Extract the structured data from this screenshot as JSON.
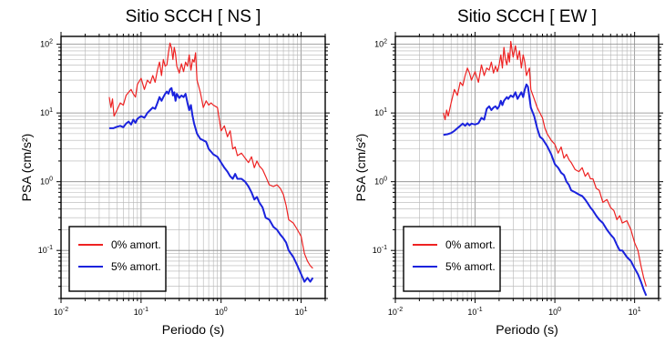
{
  "chart_data": [
    {
      "type": "line",
      "title": "Sitio SCCH [ NS ]",
      "xlabel": "Periodo (s)",
      "ylabel": "PSA (cm/s²)",
      "xscale": "log",
      "yscale": "log",
      "xlim": [
        0.01,
        20
      ],
      "ylim": [
        0.02,
        130
      ],
      "x_ticks": [
        {
          "value": 0.01,
          "base": "10",
          "exp": "-2"
        },
        {
          "value": 0.1,
          "base": "10",
          "exp": "-1"
        },
        {
          "value": 1,
          "base": "10",
          "exp": "0"
        },
        {
          "value": 10,
          "base": "10",
          "exp": "1"
        }
      ],
      "y_ticks": [
        {
          "value": 0.1,
          "base": "10",
          "exp": "-1"
        },
        {
          "value": 1,
          "base": "10",
          "exp": "0"
        },
        {
          "value": 10,
          "base": "10",
          "exp": "1"
        },
        {
          "value": 100,
          "base": "10",
          "exp": "2"
        }
      ],
      "grid": true,
      "legend_position": "bottom-left",
      "series": [
        {
          "name": "0% amort.",
          "color": "#ee2222",
          "x": [
            0.04,
            0.042,
            0.044,
            0.046,
            0.05,
            0.055,
            0.06,
            0.065,
            0.07,
            0.075,
            0.08,
            0.085,
            0.09,
            0.1,
            0.11,
            0.12,
            0.13,
            0.14,
            0.15,
            0.16,
            0.17,
            0.18,
            0.19,
            0.2,
            0.21,
            0.22,
            0.23,
            0.24,
            0.25,
            0.26,
            0.27,
            0.28,
            0.3,
            0.32,
            0.34,
            0.36,
            0.38,
            0.4,
            0.42,
            0.44,
            0.46,
            0.48,
            0.5,
            0.55,
            0.6,
            0.65,
            0.7,
            0.75,
            0.8,
            0.9,
            1.0,
            1.1,
            1.2,
            1.3,
            1.4,
            1.5,
            1.6,
            1.8,
            2.0,
            2.2,
            2.4,
            2.6,
            2.8,
            3.0,
            3.3,
            3.6,
            4.0,
            4.5,
            5.0,
            5.5,
            6.0,
            6.5,
            7.0,
            8.0,
            9.0,
            10,
            11,
            12,
            13,
            14
          ],
          "y": [
            17,
            12,
            16,
            9,
            11,
            14,
            13,
            18,
            20,
            22,
            19,
            17,
            26,
            32,
            22,
            30,
            27,
            35,
            28,
            42,
            55,
            35,
            60,
            48,
            50,
            75,
            104,
            88,
            60,
            90,
            72,
            48,
            38,
            52,
            40,
            55,
            48,
            70,
            42,
            60,
            55,
            75,
            30,
            20,
            12,
            15,
            13,
            14,
            13,
            12,
            5.5,
            6.5,
            4.5,
            5.5,
            3.0,
            3.2,
            2.4,
            2.6,
            2.2,
            1.9,
            2.3,
            1.6,
            2.0,
            1.7,
            1.5,
            1.2,
            0.9,
            0.85,
            0.9,
            0.8,
            0.65,
            0.45,
            0.28,
            0.25,
            0.2,
            0.16,
            0.09,
            0.07,
            0.06,
            0.055
          ]
        },
        {
          "name": "5% amort.",
          "color": "#1a22dd",
          "x": [
            0.04,
            0.045,
            0.05,
            0.055,
            0.06,
            0.065,
            0.07,
            0.075,
            0.08,
            0.085,
            0.09,
            0.1,
            0.11,
            0.12,
            0.13,
            0.14,
            0.15,
            0.16,
            0.17,
            0.18,
            0.19,
            0.2,
            0.21,
            0.22,
            0.23,
            0.24,
            0.25,
            0.26,
            0.27,
            0.28,
            0.3,
            0.32,
            0.34,
            0.36,
            0.38,
            0.4,
            0.42,
            0.44,
            0.46,
            0.5,
            0.55,
            0.6,
            0.65,
            0.7,
            0.8,
            0.9,
            1.0,
            1.1,
            1.2,
            1.3,
            1.4,
            1.5,
            1.6,
            1.8,
            2.0,
            2.2,
            2.4,
            2.6,
            2.8,
            3.0,
            3.3,
            3.6,
            4.0,
            4.5,
            5.0,
            5.5,
            6.0,
            6.5,
            7.0,
            8.0,
            9.0,
            10,
            11,
            12,
            13,
            14
          ],
          "y": [
            6,
            6,
            6.3,
            6.5,
            6.2,
            7,
            7.5,
            6.8,
            8,
            7.2,
            8.2,
            9,
            8.5,
            10,
            11,
            12,
            11.5,
            14,
            17,
            15,
            17,
            19,
            20.5,
            19,
            22,
            23,
            18,
            20,
            15,
            19,
            16.5,
            18,
            17,
            19,
            14,
            11,
            13,
            9,
            7,
            5,
            4.2,
            4.0,
            3.8,
            3.0,
            2.5,
            2.3,
            1.9,
            1.6,
            1.4,
            1.2,
            1.1,
            1.3,
            1.1,
            1.1,
            1.0,
            0.85,
            0.7,
            0.55,
            0.6,
            0.5,
            0.42,
            0.3,
            0.28,
            0.22,
            0.2,
            0.17,
            0.15,
            0.13,
            0.1,
            0.08,
            0.06,
            0.045,
            0.035,
            0.04,
            0.035,
            0.04
          ]
        }
      ]
    },
    {
      "type": "line",
      "title": "Sitio SCCH [ EW ]",
      "xlabel": "Periodo (s)",
      "ylabel": "PSA (cm/s²)",
      "xscale": "log",
      "yscale": "log",
      "xlim": [
        0.01,
        20
      ],
      "ylim": [
        0.02,
        130
      ],
      "x_ticks": [
        {
          "value": 0.01,
          "base": "10",
          "exp": "-2"
        },
        {
          "value": 0.1,
          "base": "10",
          "exp": "-1"
        },
        {
          "value": 1,
          "base": "10",
          "exp": "0"
        },
        {
          "value": 10,
          "base": "10",
          "exp": "1"
        }
      ],
      "y_ticks": [
        {
          "value": 0.1,
          "base": "10",
          "exp": "-1"
        },
        {
          "value": 1,
          "base": "10",
          "exp": "0"
        },
        {
          "value": 10,
          "base": "10",
          "exp": "1"
        },
        {
          "value": 100,
          "base": "10",
          "exp": "2"
        }
      ],
      "grid": true,
      "legend_position": "bottom-left",
      "series": [
        {
          "name": "0% amort.",
          "color": "#ee2222",
          "x": [
            0.04,
            0.042,
            0.044,
            0.046,
            0.05,
            0.055,
            0.06,
            0.065,
            0.07,
            0.075,
            0.08,
            0.085,
            0.09,
            0.1,
            0.11,
            0.12,
            0.13,
            0.14,
            0.15,
            0.16,
            0.17,
            0.18,
            0.19,
            0.2,
            0.21,
            0.22,
            0.23,
            0.24,
            0.25,
            0.26,
            0.27,
            0.28,
            0.3,
            0.32,
            0.34,
            0.36,
            0.38,
            0.4,
            0.42,
            0.44,
            0.46,
            0.48,
            0.5,
            0.55,
            0.6,
            0.65,
            0.7,
            0.75,
            0.8,
            0.9,
            1.0,
            1.1,
            1.2,
            1.3,
            1.4,
            1.5,
            1.6,
            1.8,
            2.0,
            2.2,
            2.4,
            2.6,
            2.8,
            3.0,
            3.3,
            3.6,
            4.0,
            4.5,
            5.0,
            5.5,
            6.0,
            6.5,
            7.0,
            8.0,
            9.0,
            10,
            11,
            12,
            13,
            14
          ],
          "y": [
            10,
            8,
            11,
            9,
            14,
            22,
            18,
            28,
            25,
            35,
            45,
            38,
            30,
            40,
            28,
            50,
            35,
            45,
            42,
            55,
            38,
            48,
            40,
            50,
            70,
            45,
            90,
            60,
            50,
            75,
            55,
            110,
            65,
            95,
            60,
            80,
            45,
            70,
            55,
            35,
            40,
            45,
            22,
            16,
            12,
            10,
            8.5,
            6,
            5,
            4,
            3.5,
            2.6,
            3.2,
            2.2,
            2.5,
            2.1,
            1.9,
            1.5,
            1.4,
            1.6,
            1.2,
            1.35,
            1.1,
            1.1,
            0.8,
            0.75,
            0.5,
            0.55,
            0.42,
            0.38,
            0.28,
            0.32,
            0.25,
            0.27,
            0.2,
            0.13,
            0.1,
            0.06,
            0.04,
            0.03
          ]
        },
        {
          "name": "5% amort.",
          "color": "#1a22dd",
          "x": [
            0.04,
            0.045,
            0.05,
            0.055,
            0.06,
            0.065,
            0.07,
            0.075,
            0.08,
            0.085,
            0.09,
            0.1,
            0.11,
            0.12,
            0.13,
            0.14,
            0.15,
            0.16,
            0.17,
            0.18,
            0.19,
            0.2,
            0.21,
            0.22,
            0.23,
            0.24,
            0.25,
            0.26,
            0.27,
            0.28,
            0.3,
            0.32,
            0.34,
            0.36,
            0.38,
            0.4,
            0.42,
            0.44,
            0.46,
            0.5,
            0.55,
            0.6,
            0.65,
            0.7,
            0.8,
            0.9,
            1.0,
            1.1,
            1.2,
            1.3,
            1.4,
            1.5,
            1.6,
            1.8,
            2.0,
            2.2,
            2.4,
            2.6,
            2.8,
            3.0,
            3.3,
            3.6,
            4.0,
            4.5,
            5.0,
            5.5,
            6.0,
            6.5,
            7.0,
            8.0,
            9.0,
            10,
            11,
            12,
            13,
            14
          ],
          "y": [
            4.8,
            4.9,
            5.1,
            5.5,
            6.0,
            6.5,
            7.0,
            6.5,
            7.1,
            6.6,
            7.0,
            6.8,
            7.1,
            8.5,
            8.0,
            11.5,
            12.5,
            11,
            12,
            12.5,
            11.5,
            12.5,
            15,
            13,
            15,
            16,
            17,
            16,
            17,
            18,
            17,
            20,
            16,
            18,
            20,
            17,
            22,
            26,
            24,
            12,
            9,
            6,
            4.5,
            4.2,
            3.3,
            2.5,
            1.8,
            1.6,
            1.35,
            1.25,
            1.0,
            0.9,
            0.75,
            0.7,
            0.65,
            0.62,
            0.55,
            0.48,
            0.42,
            0.38,
            0.32,
            0.28,
            0.25,
            0.2,
            0.17,
            0.15,
            0.12,
            0.1,
            0.1,
            0.08,
            0.07,
            0.055,
            0.045,
            0.035,
            0.027,
            0.022
          ]
        }
      ]
    }
  ]
}
